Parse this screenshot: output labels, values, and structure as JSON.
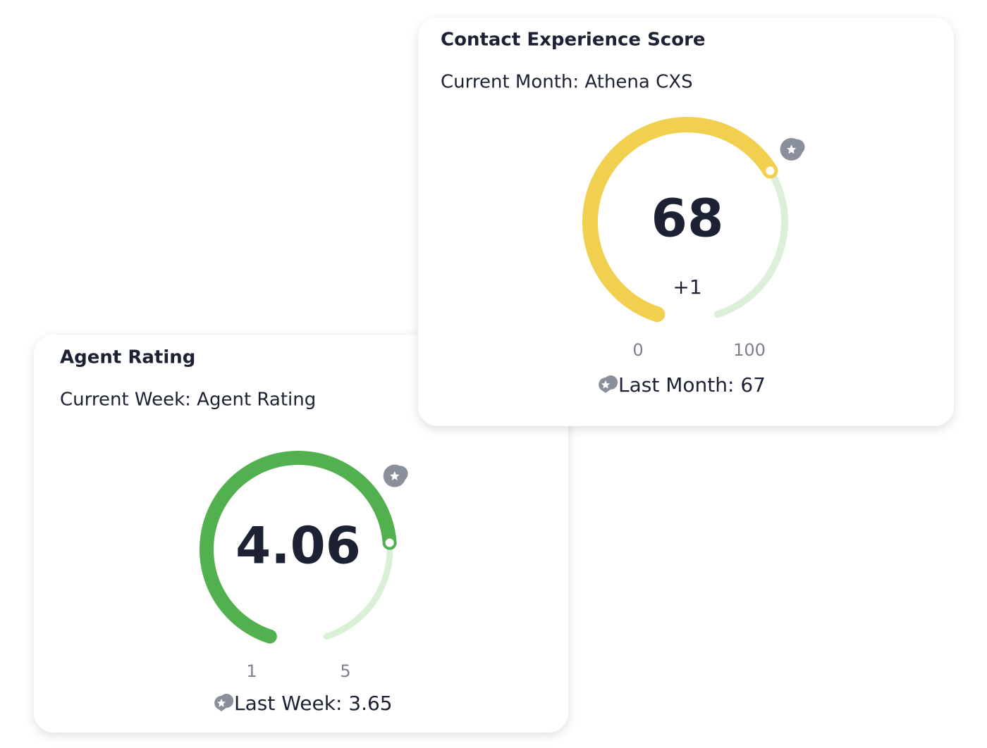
{
  "chart_data": [
    {
      "type": "gauge",
      "title": "Agent Rating",
      "subtitle": "Current Week: Agent Rating",
      "value": 4.06,
      "ylim": [
        1,
        5
      ],
      "yticks": [
        1,
        5
      ],
      "reference": 3.65,
      "reference_label": "Last Week: 3.65",
      "color": "#52b04f",
      "track_color": "#d9f0d6"
    },
    {
      "type": "gauge",
      "title": "Contact Experience Score",
      "subtitle": "Current Month: Athena CXS",
      "value": 68,
      "change": "+1",
      "ylim": [
        0,
        100
      ],
      "yticks": [
        0,
        100
      ],
      "reference": 67,
      "reference_label": "Last Month: 67",
      "color": "#f1d04f",
      "track_color": "#dcefd9"
    }
  ]
}
